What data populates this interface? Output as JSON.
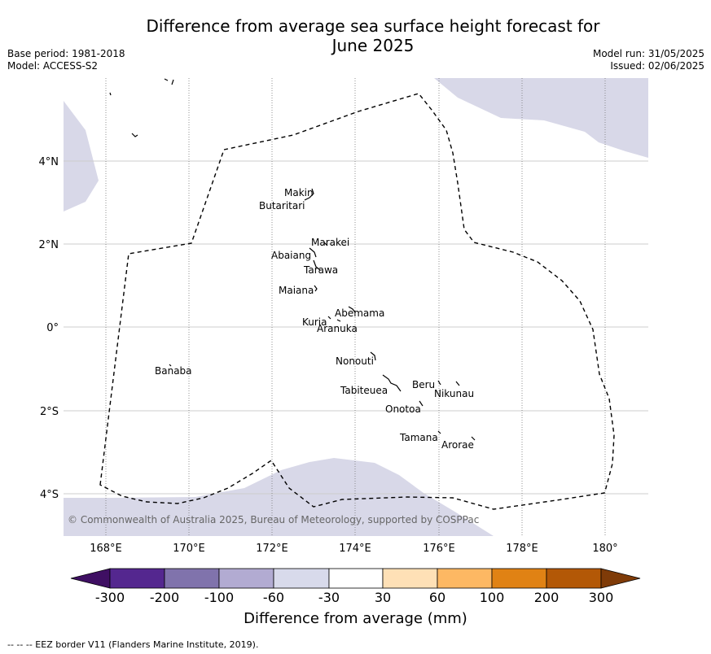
{
  "title": "Difference from average sea surface height forecast for June 2025",
  "meta_left": {
    "base_period": "Base period: 1981-2018",
    "model": "Model: ACCESS-S2"
  },
  "meta_right": {
    "model_run": "Model run: 31/05/2025",
    "issued": "Issued: 02/06/2025"
  },
  "map": {
    "lat_labels": [
      "4°N",
      "2°N",
      "0°",
      "2°S",
      "4°S"
    ],
    "lon_labels": [
      "168°E",
      "170°E",
      "172°E",
      "174°E",
      "176°E",
      "178°E",
      "180°"
    ],
    "places": [
      "Makin",
      "Butaritari",
      "Marakei",
      "Abaiang",
      "Tarawa",
      "Maiana",
      "Abemama",
      "Kuria",
      "Aranuka",
      "Nonouti",
      "Banaba",
      "Beru",
      "Nikunau",
      "Tabiteuea",
      "Onotoa",
      "Tamana",
      "Arorae"
    ],
    "copyright": "© Commonwealth of Australia 2025, Bureau of Meteorology, supported by COSPPac",
    "land_color": "#ffffff",
    "anomaly_color": "#d8d8e8"
  },
  "colorbar": {
    "tick_labels": [
      "-300",
      "-200",
      "-100",
      "-60",
      "-30",
      "30",
      "60",
      "100",
      "200",
      "300"
    ],
    "colors": [
      "#3f0f63",
      "#54278f",
      "#8073ac",
      "#b2abd2",
      "#d8daeb",
      "#ffffff",
      "#fee0b6",
      "#fdb863",
      "#e08214",
      "#b35806",
      "#7f3b08"
    ],
    "title": "Difference from average (mm)"
  },
  "footer": "--  --  -- EEZ border V11 (Flanders Marine Institute, 2019)."
}
